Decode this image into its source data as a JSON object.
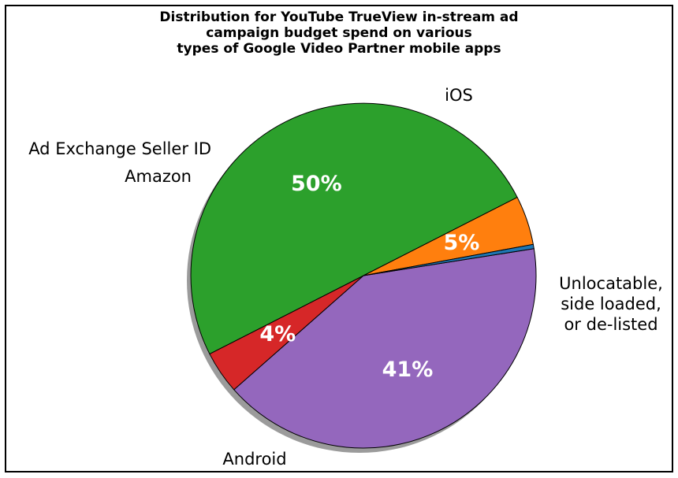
{
  "chart_data": {
    "type": "pie",
    "title": "Distribution for YouTube TrueView in-stream ad\ncampaign budget spend on various\ntypes of Google Video Partner mobile apps",
    "slices": [
      {
        "name": "iOS",
        "label": "iOS",
        "value": 41,
        "pct_label": "41%",
        "color": "#9467bd"
      },
      {
        "name": "Unlocatable",
        "label": "Unlocatable,\nside loaded,\nor de-listed",
        "value": 4,
        "pct_label": "4%",
        "color": "#d62728"
      },
      {
        "name": "Android",
        "label": "Android",
        "value": 50,
        "pct_label": "50%",
        "color": "#2ca02c"
      },
      {
        "name": "Amazon",
        "label": "Amazon",
        "value": 4.6,
        "pct_label": "5%",
        "color": "#ff7f0e"
      },
      {
        "name": "Ad Exchange Seller ID",
        "label": "Ad Exchange Seller ID",
        "value": 0.4,
        "pct_label": "",
        "color": "#1f77b4"
      }
    ],
    "start_angle_deg": 9,
    "direction": "clockwise",
    "shadow": true,
    "legend": "none"
  }
}
